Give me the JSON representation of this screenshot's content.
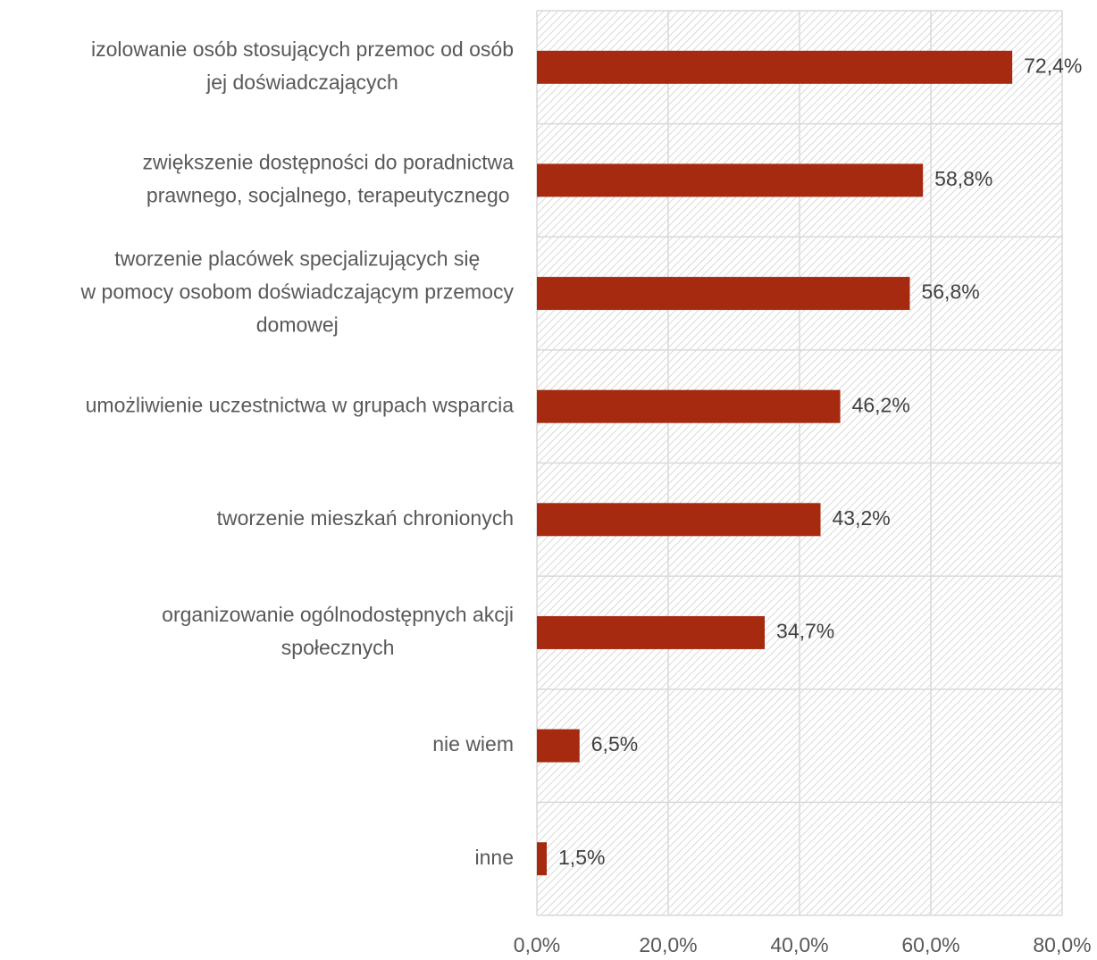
{
  "chart_data": {
    "type": "bar",
    "orientation": "horizontal",
    "categories": [
      [
        "izolowanie osób stosujących przemoc od osób",
        "jej doświadczających"
      ],
      [
        "zwiększenie dostępności do poradnictwa",
        "prawnego, socjalnego, terapeutycznego"
      ],
      [
        "tworzenie placówek specjalizujących się",
        "w pomocy osobom doświadczającym przemocy",
        "domowej"
      ],
      [
        "umożliwienie uczestnictwa w grupach wsparcia"
      ],
      [
        "tworzenie mieszkań chronionych"
      ],
      [
        "organizowanie ogólnodostępnych akcji",
        "społecznych"
      ],
      [
        "nie wiem"
      ],
      [
        "inne"
      ]
    ],
    "values": [
      72.4,
      58.8,
      56.8,
      46.2,
      43.2,
      34.7,
      6.5,
      1.5
    ],
    "data_labels": [
      "72,4%",
      "58,8%",
      "56,8%",
      "46,2%",
      "43,2%",
      "34,7%",
      "6,5%",
      "1,5%"
    ],
    "xlim": [
      0,
      80
    ],
    "xticks": [
      0,
      20,
      40,
      60,
      80
    ],
    "xtick_labels": [
      "0,0%",
      "20,0%",
      "40,0%",
      "60,0%",
      "80,0%"
    ],
    "title": "",
    "xlabel": "",
    "ylabel": "",
    "legend": "none",
    "grid": true,
    "background_pattern": "diagonal-hatch",
    "colors": {
      "bar": "#A52A10",
      "grid": "#D9D9D9",
      "hatch": "#D0D0D0"
    }
  }
}
